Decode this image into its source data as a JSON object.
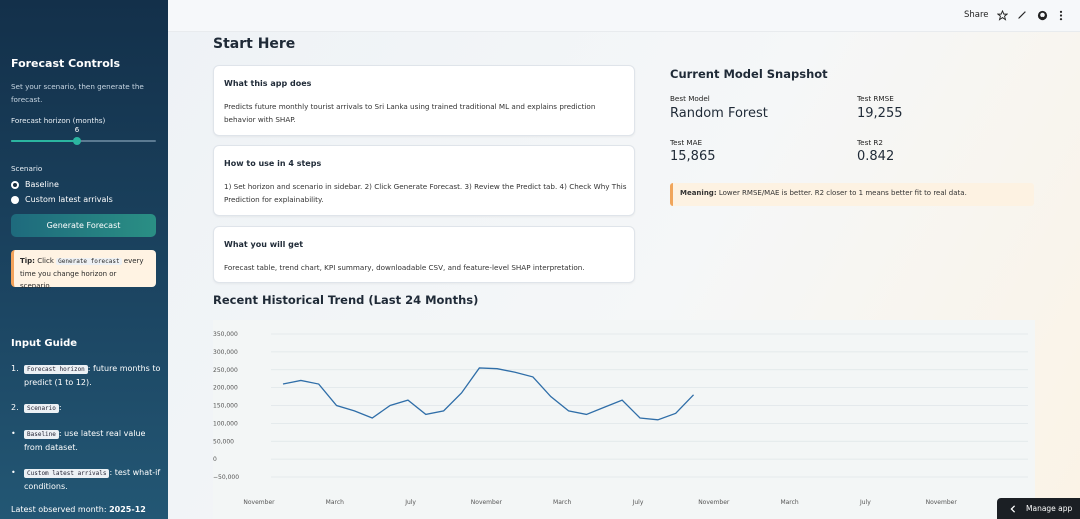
{
  "sidebar": {
    "title": "Forecast Controls",
    "description": "Set your scenario, then generate the forecast.",
    "horizon_label": "Forecast horizon (months)",
    "horizon_value": "6",
    "horizon_min": 1,
    "horizon_max": 12,
    "scenario_label": "Scenario",
    "scenario_options": [
      "Baseline",
      "Custom latest arrivals"
    ],
    "scenario_selected": "Baseline",
    "generate_button": "Generate Forecast",
    "tip": {
      "prefix": "Tip:",
      "before": "Click",
      "code": "Generate forecast",
      "after": "every time you change horizon or scenario."
    },
    "guide_title": "Input Guide",
    "guide": [
      {
        "marker": "1.",
        "code": "Forecast horizon",
        "text": ": future months to predict (1 to 12)."
      },
      {
        "marker": "2.",
        "code": "Scenario",
        "text": ":"
      },
      {
        "marker": "•",
        "code": "Baseline",
        "text": ": use latest real value from dataset."
      },
      {
        "marker": "•",
        "code": "Custom latest arrivals",
        "text": ": test what-if conditions."
      }
    ],
    "latest_label": "Latest observed month:",
    "latest_value": "2025-12"
  },
  "topbar": {
    "share": "Share",
    "icons": [
      "star-icon",
      "pencil-icon",
      "github-icon",
      "more-icon"
    ]
  },
  "main": {
    "start_title": "Start Here",
    "cards": [
      {
        "title": "What this app does",
        "body": "Predicts future monthly tourist arrivals to Sri Lanka using trained traditional ML and explains prediction behavior with SHAP."
      },
      {
        "title": "How to use in 4 steps",
        "body": "1) Set horizon and scenario in sidebar. 2) Click Generate Forecast. 3) Review the Predict tab. 4) Check Why This Prediction for explainability."
      },
      {
        "title": "What you will get",
        "body": "Forecast table, trend chart, KPI summary, downloadable CSV, and feature-level SHAP interpretation."
      }
    ],
    "snapshot": {
      "title": "Current Model Snapshot",
      "best_model_label": "Best Model",
      "best_model": "Random Forest",
      "rmse_label": "Test RMSE",
      "rmse": "19,255",
      "mae_label": "Test MAE",
      "mae": "15,865",
      "r2_label": "Test R2",
      "r2": "0.842",
      "meaning_label": "Meaning:",
      "meaning_text": "Lower RMSE/MAE is better. R2 closer to 1 means better fit to real data."
    },
    "trend_title": "Recent Historical Trend (Last 24 Months)"
  },
  "chart_data": {
    "type": "line",
    "title": "",
    "xlabel": "",
    "ylabel": "",
    "ylim": [
      -50000,
      350000
    ],
    "yticks": [
      350000,
      300000,
      250000,
      200000,
      150000,
      100000,
      50000,
      0,
      -50000
    ],
    "ytick_labels": [
      "350,000",
      "300,000",
      "250,000",
      "200,000",
      "150,000",
      "100,000",
      "50,000",
      "0",
      "−50,000"
    ],
    "xtick_labels": [
      "November",
      "March",
      "July",
      "November",
      "March",
      "July",
      "November",
      "March",
      "July",
      "November",
      "Ma"
    ],
    "grid": true,
    "color": "#2f6ea8",
    "series": [
      {
        "values": [
          210000,
          220000,
          210000,
          150000,
          135000,
          115000,
          150000,
          165000,
          125000,
          135000,
          185000,
          255000,
          253000,
          243000,
          230000,
          175000,
          135000,
          125000,
          145000,
          165000,
          115000,
          110000,
          128000,
          180000
        ]
      }
    ]
  },
  "manage_app": "Manage app"
}
